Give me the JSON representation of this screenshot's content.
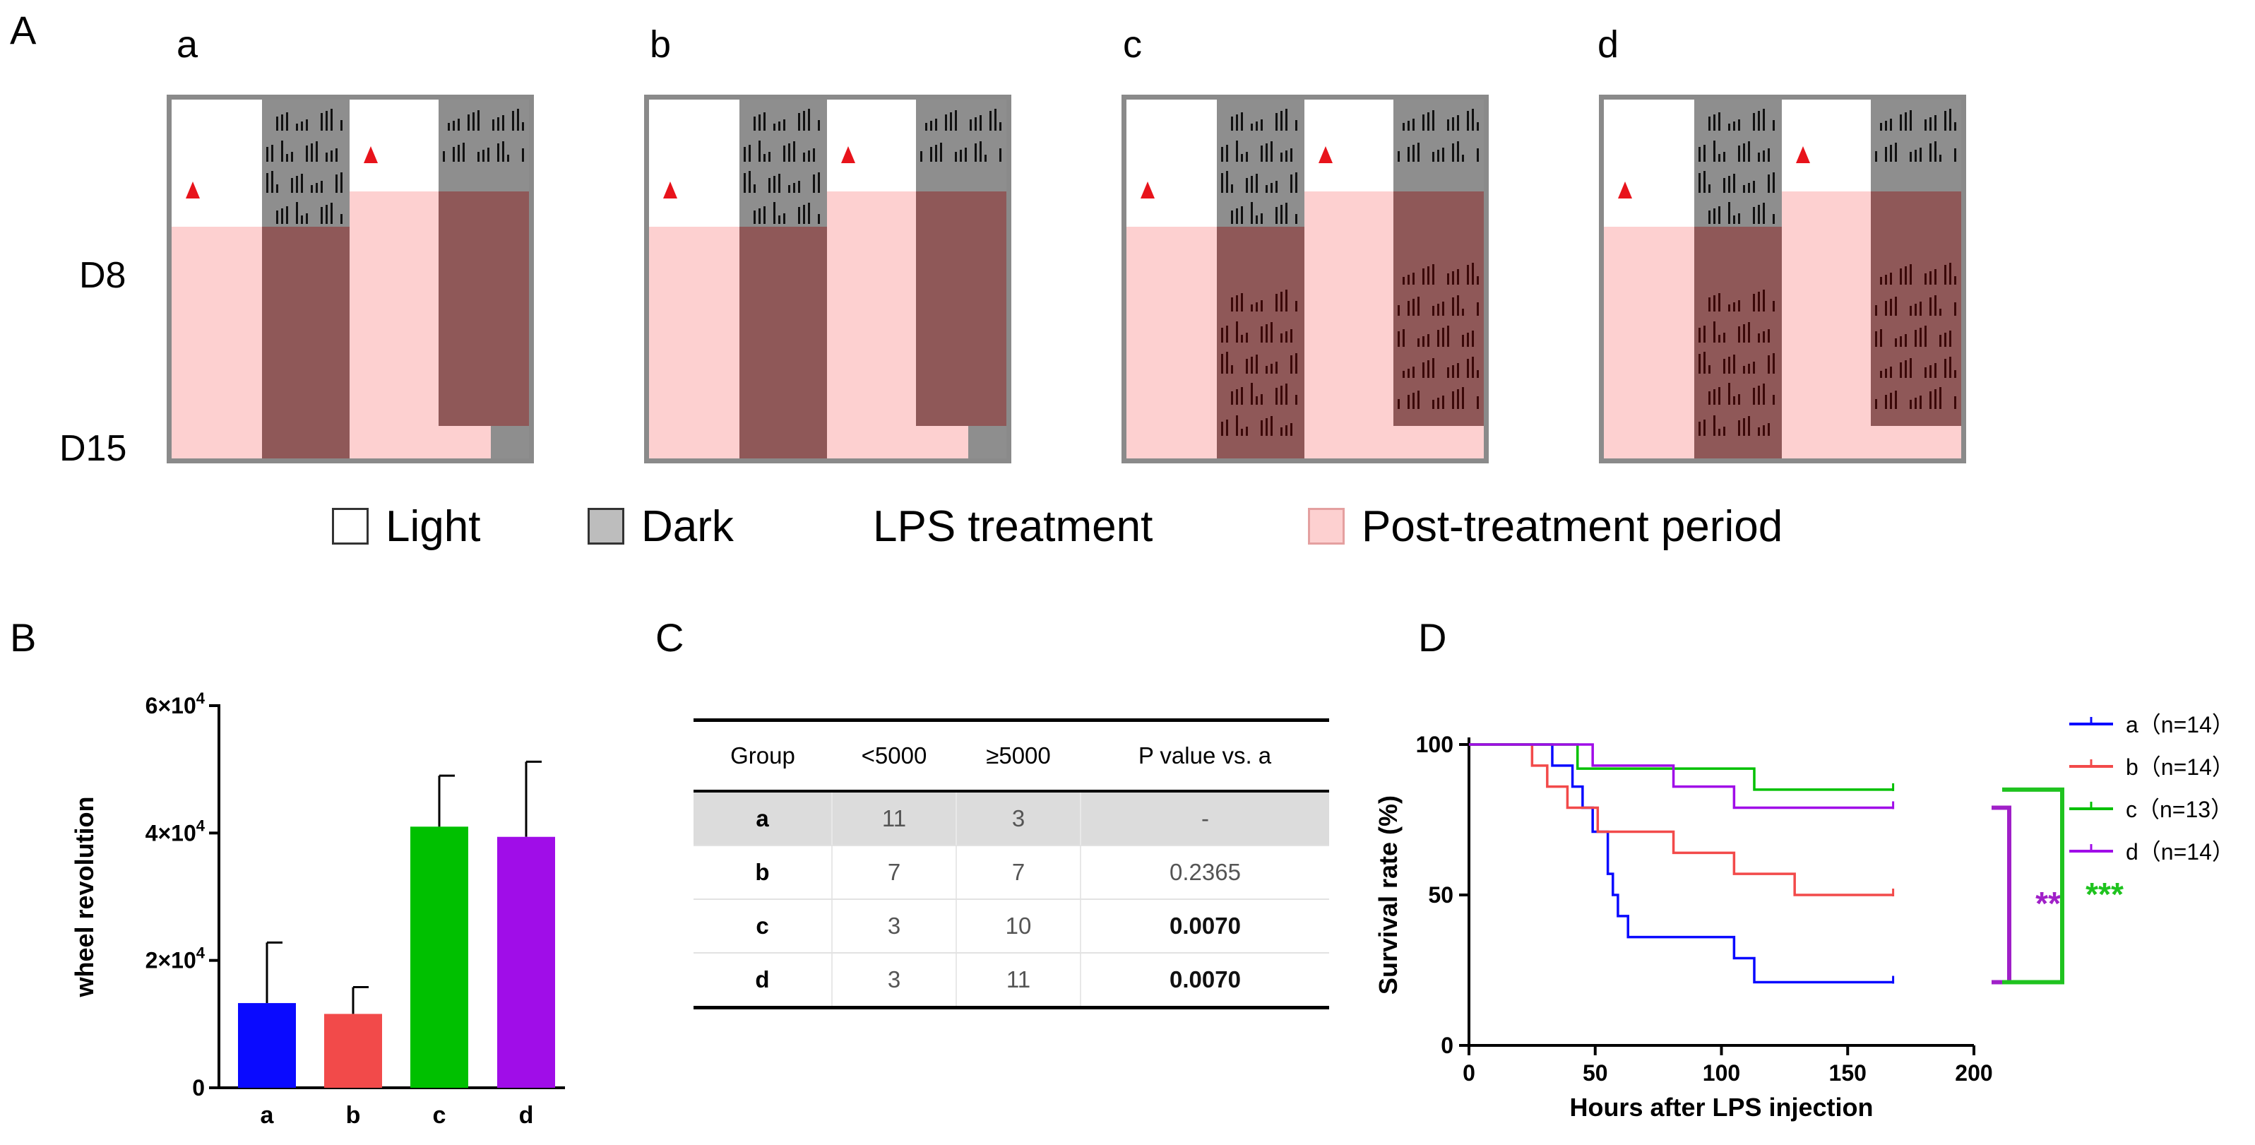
{
  "panel_labels": {
    "A": "A",
    "B": "B",
    "C": "C",
    "D": "D"
  },
  "panel_a": {
    "subpanels": [
      "a",
      "b",
      "c",
      "d"
    ],
    "row_labels": {
      "start": "D8",
      "end": "D15"
    },
    "legend": [
      {
        "label": "Light",
        "color": "#ffffff"
      },
      {
        "label": "Dark",
        "color": "#bdbdbd"
      },
      {
        "label": "LPS treatment",
        "color": "#e8131b"
      },
      {
        "label": "Post-treatment period",
        "color": "#fdd0d0"
      }
    ],
    "marker_icon": "red-triangle-icon"
  },
  "colors": {
    "a": "#0a0aff",
    "b": "#f24a4a",
    "c": "#00c000",
    "d": "#a00de8",
    "sig_dd": "#a020c8",
    "sig_ddd": "#1fc31f"
  },
  "chart_data": [
    {
      "panel": "B",
      "type": "bar",
      "categories": [
        "a",
        "b",
        "c",
        "d"
      ],
      "values": [
        13300,
        11600,
        41000,
        39400
      ],
      "errors": [
        9500,
        4200,
        8000,
        11800
      ],
      "ylabel": "wheel revolution",
      "ylim": [
        0,
        60000
      ],
      "yticks": [
        0,
        20000,
        40000,
        60000
      ],
      "ytick_labels": [
        "0",
        "2×10",
        "4×10",
        "6×10"
      ],
      "ytick_exponent": "4"
    },
    {
      "panel": "C",
      "type": "table",
      "columns": [
        "Group",
        "<5000",
        "≥5000",
        "P value vs. a"
      ],
      "rows": [
        {
          "group": "a",
          "lt": "11",
          "ge": "3",
          "p": "-"
        },
        {
          "group": "b",
          "lt": "7",
          "ge": "7",
          "p": "0.2365"
        },
        {
          "group": "c",
          "lt": "3",
          "ge": "10",
          "p": "0.0070"
        },
        {
          "group": "d",
          "lt": "3",
          "ge": "11",
          "p": "0.0070"
        }
      ]
    },
    {
      "panel": "D",
      "type": "line",
      "xlabel": "Hours after LPS injection",
      "ylabel": "Survival rate (%)",
      "xlim": [
        0,
        200
      ],
      "ylim": [
        0,
        100
      ],
      "xticks": [
        0,
        50,
        100,
        150,
        200
      ],
      "yticks": [
        0,
        50,
        100
      ],
      "series": [
        {
          "name": "a（n=14）",
          "key": "a",
          "points": [
            [
              0,
              100
            ],
            [
              33,
              100
            ],
            [
              33,
              93
            ],
            [
              41,
              93
            ],
            [
              41,
              86
            ],
            [
              45,
              86
            ],
            [
              45,
              79
            ],
            [
              49,
              79
            ],
            [
              49,
              71
            ],
            [
              55,
              71
            ],
            [
              55,
              57
            ],
            [
              57,
              57
            ],
            [
              57,
              50
            ],
            [
              59,
              50
            ],
            [
              59,
              43
            ],
            [
              63,
              43
            ],
            [
              63,
              36
            ],
            [
              105,
              36
            ],
            [
              105,
              29
            ],
            [
              113,
              29
            ],
            [
              113,
              21
            ],
            [
              168,
              21
            ]
          ]
        },
        {
          "name": "b（n=14）",
          "key": "b",
          "points": [
            [
              0,
              100
            ],
            [
              25,
              100
            ],
            [
              25,
              93
            ],
            [
              31,
              93
            ],
            [
              31,
              86
            ],
            [
              39,
              86
            ],
            [
              39,
              79
            ],
            [
              51,
              79
            ],
            [
              51,
              71
            ],
            [
              81,
              71
            ],
            [
              81,
              64
            ],
            [
              105,
              64
            ],
            [
              105,
              57
            ],
            [
              129,
              57
            ],
            [
              129,
              50
            ],
            [
              168,
              50
            ]
          ]
        },
        {
          "name": "c（n=13）",
          "key": "c",
          "points": [
            [
              0,
              100
            ],
            [
              43,
              100
            ],
            [
              43,
              92
            ],
            [
              113,
              92
            ],
            [
              113,
              85
            ],
            [
              168,
              85
            ]
          ]
        },
        {
          "name": "d（n=14）",
          "key": "d",
          "points": [
            [
              0,
              100
            ],
            [
              49,
              100
            ],
            [
              49,
              93
            ],
            [
              81,
              93
            ],
            [
              81,
              86
            ],
            [
              105,
              86
            ],
            [
              105,
              79
            ],
            [
              168,
              79
            ]
          ]
        }
      ],
      "annotations": [
        {
          "text": "**",
          "from": "d",
          "to": "a"
        },
        {
          "text": "***",
          "from": "c",
          "to": "a"
        }
      ]
    }
  ]
}
